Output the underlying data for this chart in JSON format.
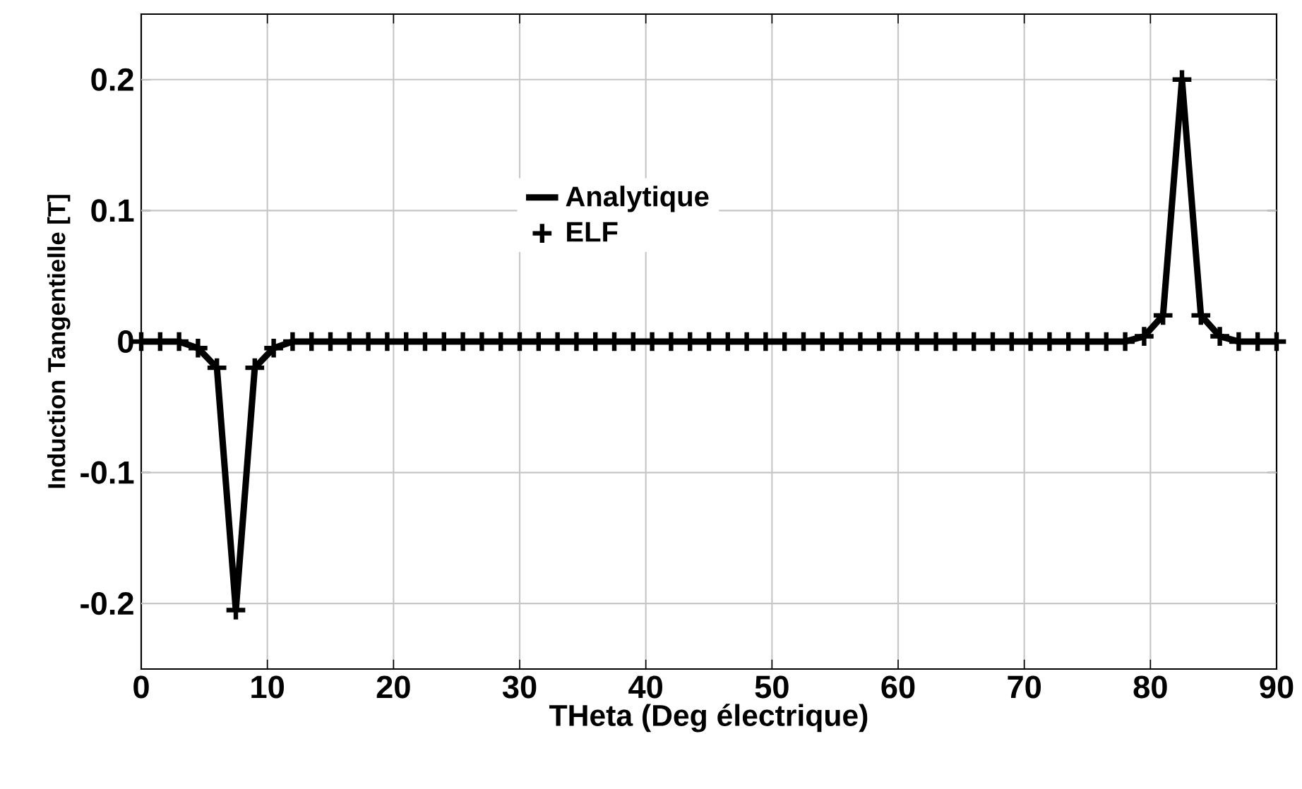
{
  "chart_data": {
    "type": "line",
    "xlabel": "THeta (Deg électrique)",
    "ylabel": "Induction Tangentielle [T]",
    "x": [
      0,
      1.5,
      3,
      4.5,
      6,
      7.5,
      9,
      10.5,
      12,
      13.5,
      15,
      16.5,
      18,
      19.5,
      21,
      22.5,
      24,
      25.5,
      27,
      28.5,
      30,
      31.5,
      33,
      34.5,
      36,
      37.5,
      39,
      40.5,
      42,
      43.5,
      45,
      46.5,
      48,
      49.5,
      51,
      52.5,
      54,
      55.5,
      57,
      58.5,
      60,
      61.5,
      63,
      64.5,
      66,
      67.5,
      69,
      70.5,
      72,
      73.5,
      75,
      76.5,
      78,
      79.5,
      81,
      82.5,
      84,
      85.5,
      87,
      88.5,
      90
    ],
    "series": [
      {
        "name": "Analytique",
        "color": "#000000",
        "marker": "none",
        "line_style": "solid",
        "values": [
          0,
          0,
          0,
          -0.005,
          -0.02,
          -0.205,
          -0.02,
          -0.005,
          0,
          0,
          0,
          0,
          0,
          0,
          0,
          0,
          0,
          0,
          0,
          0,
          0,
          0,
          0,
          0,
          0,
          0,
          0,
          0,
          0,
          0,
          0,
          0,
          0,
          0,
          0,
          0,
          0,
          0,
          0,
          0,
          0,
          0,
          0,
          0,
          0,
          0,
          0,
          0,
          0,
          0,
          0,
          0,
          0,
          0.004,
          0.02,
          0.2,
          0.02,
          0.004,
          0,
          0,
          0
        ]
      },
      {
        "name": "ELF",
        "type": "scatter",
        "color": "#000000",
        "marker": "cross",
        "values": [
          0,
          0,
          0,
          -0.005,
          -0.02,
          -0.205,
          -0.02,
          -0.005,
          0,
          0,
          0,
          0,
          0,
          0,
          0,
          0,
          0,
          0,
          0,
          0,
          0,
          0,
          0,
          0,
          0,
          0,
          0,
          0,
          0,
          0,
          0,
          0,
          0,
          0,
          0,
          0,
          0,
          0,
          0,
          0,
          0,
          0,
          0,
          0,
          0,
          0,
          0,
          0,
          0,
          0,
          0,
          0,
          0,
          0.004,
          0.02,
          0.2,
          0.02,
          0.004,
          0,
          0,
          0
        ]
      }
    ],
    "xlim": [
      0,
      90
    ],
    "xticks": [
      0,
      10,
      20,
      30,
      40,
      50,
      60,
      70,
      80,
      90
    ],
    "ylim": [
      -0.25,
      0.25
    ],
    "yticks": [
      -0.2,
      -0.1,
      0,
      0.1,
      0.2
    ],
    "grid": true,
    "legend": "top"
  }
}
